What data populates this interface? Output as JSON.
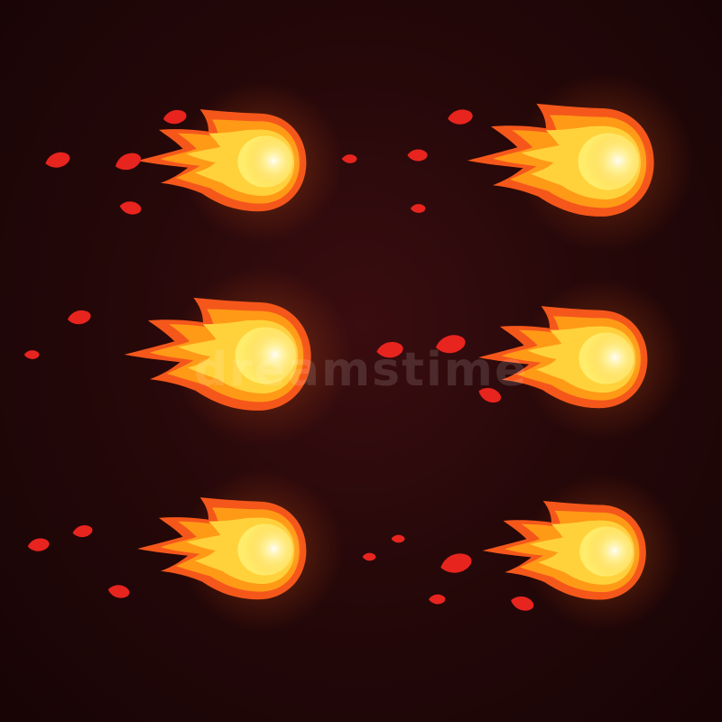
{
  "scene": {
    "subject": "fireball",
    "count": 6,
    "colors": {
      "background": "#260809",
      "core": "#fff8d6",
      "inner": "#ffd23c",
      "mid": "#ff9a16",
      "outer": "#f5571b",
      "ember": "#e8241f"
    }
  },
  "watermark": {
    "text": "dreamstime"
  }
}
